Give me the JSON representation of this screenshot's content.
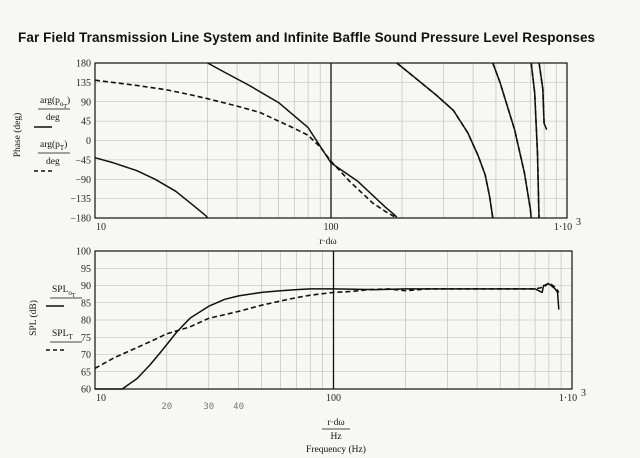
{
  "title": "Far Field Transmission Line System and Infinite Baffle Sound Pressure Level Responses",
  "chart_data": [
    {
      "type": "line",
      "name": "phase",
      "x_scale": "log",
      "xlim": [
        10,
        1000
      ],
      "ylim": [
        -180,
        180
      ],
      "yticks": [
        180,
        135,
        90,
        45,
        0,
        -45,
        -90,
        -135,
        -180
      ],
      "ytick_labels": [
        "180",
        "135",
        "90",
        "45",
        "0",
        "−45",
        "−90",
        "−135",
        "−180"
      ],
      "xtick_labels": [
        "10",
        "100",
        "1·10"
      ],
      "xtick_exp": "3",
      "ylabel": "Phase (deg)",
      "legend_entries": [
        {
          "num": "arg(p",
          "sub": "o",
          "sub2": "T",
          "close": ")",
          "den": "deg",
          "style": "solid"
        },
        {
          "num": "arg(p",
          "sub": "T",
          "sub2": "",
          "close": ")",
          "den": "deg",
          "style": "dashed"
        }
      ],
      "xlabel_fragment": "r·dω",
      "series": [
        {
          "label": "arg(p_oT)/deg",
          "style": "solid",
          "points": [
            [
              10,
              -40
            ],
            [
              12,
              -52
            ],
            [
              15,
              -70
            ],
            [
              18,
              -90
            ],
            [
              22,
              -118
            ],
            [
              26,
              -150
            ],
            [
              29.5,
              -175
            ],
            [
              30,
              -180
            ],
            [
              30,
              180
            ],
            [
              35,
              160
            ],
            [
              45,
              128
            ],
            [
              60,
              88
            ],
            [
              80,
              30
            ],
            [
              100,
              -52
            ],
            [
              130,
              -95
            ],
            [
              170,
              -155
            ],
            [
              185,
              -172
            ],
            [
              190,
              -178
            ],
            [
              190,
              180
            ],
            [
              220,
              152
            ],
            [
              280,
              105
            ],
            [
              330,
              70
            ],
            [
              380,
              18
            ],
            [
              420,
              -35
            ],
            [
              450,
              -80
            ],
            [
              470,
              -130
            ],
            [
              485,
              -180
            ],
            [
              485,
              180
            ],
            [
              520,
              135
            ],
            [
              600,
              25
            ],
            [
              660,
              -75
            ],
            [
              700,
              -160
            ],
            [
              705,
              -180
            ],
            [
              705,
              180
            ],
            [
              730,
              110
            ],
            [
              750,
              -30
            ],
            [
              760,
              -170
            ],
            [
              762,
              -180
            ],
            [
              762,
              180
            ],
            [
              790,
              120
            ],
            [
              800,
              40
            ],
            [
              820,
              25
            ]
          ]
        },
        {
          "label": "arg(p_T)/deg",
          "style": "dashed",
          "points": [
            [
              10,
              140
            ],
            [
              15,
              128
            ],
            [
              20,
              118
            ],
            [
              25,
              107
            ],
            [
              30,
              97
            ],
            [
              40,
              80
            ],
            [
              50,
              65
            ],
            [
              60,
              45
            ],
            [
              70,
              28
            ],
            [
              80,
              12
            ],
            [
              90,
              -15
            ],
            [
              100,
              -48
            ],
            [
              120,
              -95
            ],
            [
              150,
              -145
            ],
            [
              170,
              -165
            ],
            [
              190,
              -180
            ],
            [
              190,
              180
            ],
            [
              220,
              152
            ],
            [
              280,
              105
            ],
            [
              330,
              70
            ],
            [
              380,
              18
            ],
            [
              420,
              -35
            ],
            [
              450,
              -80
            ],
            [
              470,
              -130
            ],
            [
              485,
              -180
            ],
            [
              485,
              180
            ],
            [
              520,
              135
            ],
            [
              600,
              25
            ],
            [
              660,
              -75
            ],
            [
              700,
              -160
            ],
            [
              705,
              -180
            ],
            [
              705,
              180
            ],
            [
              730,
              110
            ],
            [
              750,
              -30
            ],
            [
              760,
              -170
            ],
            [
              762,
              -180
            ],
            [
              762,
              180
            ],
            [
              790,
              120
            ],
            [
              800,
              40
            ],
            [
              820,
              45
            ]
          ]
        }
      ]
    },
    {
      "type": "line",
      "name": "spl",
      "x_scale": "log",
      "xlim": [
        10,
        1000
      ],
      "ylim": [
        60,
        100
      ],
      "yticks": [
        60,
        65,
        70,
        75,
        80,
        85,
        90,
        95,
        100
      ],
      "ytick_labels": [
        "60",
        "65",
        "70",
        "75",
        "80",
        "85",
        "90",
        "95",
        "100"
      ],
      "xtick_labels": [
        "10",
        "100",
        "1·10"
      ],
      "xtick_exp": "3",
      "ylabel": "SPL (dB)",
      "legend_entries": [
        {
          "num": "SPL",
          "sub": "o",
          "sub2": "T",
          "style": "solid"
        },
        {
          "num": "SPL",
          "sub": "T",
          "sub2": "",
          "style": "dashed"
        }
      ],
      "xlabel_num": "r·dω",
      "xlabel_den": "Hz",
      "xlabel": "Frequency (Hz)",
      "handwritten_ticks": [
        "20",
        "30",
        "40"
      ],
      "series": [
        {
          "label": "SPL_oT",
          "style": "solid",
          "points": [
            [
              10,
              60
            ],
            [
              13,
              60
            ],
            [
              15,
              63
            ],
            [
              17,
              67
            ],
            [
              19,
              71
            ],
            [
              22,
              76.5
            ],
            [
              25,
              80.5
            ],
            [
              30,
              84
            ],
            [
              35,
              86
            ],
            [
              40,
              87
            ],
            [
              50,
              88
            ],
            [
              60,
              88.5
            ],
            [
              70,
              88.8
            ],
            [
              80,
              89
            ],
            [
              100,
              89
            ],
            [
              150,
              88.8
            ],
            [
              200,
              89
            ],
            [
              300,
              89
            ],
            [
              400,
              89
            ],
            [
              500,
              89
            ],
            [
              600,
              89
            ],
            [
              700,
              89
            ],
            [
              750,
              88
            ],
            [
              760,
              90
            ],
            [
              800,
              90.5
            ],
            [
              850,
              89
            ],
            [
              870,
              88
            ],
            [
              880,
              83
            ]
          ]
        },
        {
          "label": "SPL_T",
          "style": "dashed",
          "points": [
            [
              10,
              66
            ],
            [
              12,
              69
            ],
            [
              15,
              72
            ],
            [
              18,
              74.5
            ],
            [
              20,
              76
            ],
            [
              25,
              78
            ],
            [
              30,
              80.5
            ],
            [
              40,
              82.5
            ],
            [
              50,
              84.3
            ],
            [
              60,
              85.5
            ],
            [
              70,
              86.5
            ],
            [
              80,
              87.2
            ],
            [
              100,
              88
            ],
            [
              120,
              88.3
            ],
            [
              140,
              88.8
            ],
            [
              170,
              89
            ],
            [
              200,
              88.5
            ],
            [
              250,
              89
            ],
            [
              300,
              89
            ],
            [
              400,
              89
            ],
            [
              500,
              89
            ],
            [
              600,
              89
            ],
            [
              700,
              89
            ],
            [
              760,
              89.5
            ],
            [
              800,
              90.8
            ],
            [
              850,
              89.5
            ],
            [
              880,
              88
            ]
          ]
        }
      ]
    }
  ]
}
